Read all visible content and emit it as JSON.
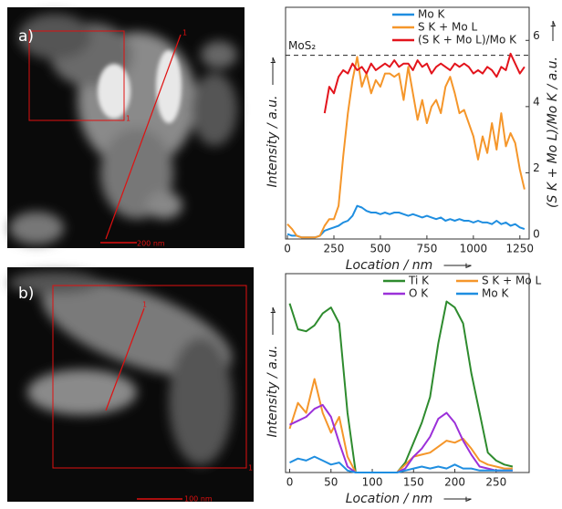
{
  "panels": [
    {
      "label": "a)",
      "markers": [
        "1",
        "1"
      ],
      "scale_bar": "200 nm"
    },
    {
      "label": "b)",
      "markers": [
        "1",
        "1"
      ],
      "scale_bar": "100 nm"
    }
  ],
  "chart_data": [
    {
      "type": "line",
      "ylabel": "Intensity / a.u.",
      "xlabel": "Location / nm",
      "y2label": "(S K + Mo L)/Mo K / a.u.",
      "x": [
        0,
        25,
        50,
        75,
        100,
        125,
        150,
        175,
        200,
        225,
        250,
        275,
        300,
        325,
        350,
        375,
        400,
        425,
        450,
        475,
        500,
        525,
        550,
        575,
        600,
        625,
        650,
        675,
        700,
        725,
        750,
        775,
        800,
        825,
        850,
        875,
        900,
        925,
        950,
        975,
        1000,
        1025,
        1050,
        1075,
        1100,
        1125,
        1150,
        1175,
        1200,
        1225,
        1250,
        1275
      ],
      "xlim": [
        -10,
        1300
      ],
      "xticks": [
        0,
        250,
        500,
        750,
        1000,
        1250
      ],
      "ylim": [
        0,
        7
      ],
      "y2lim": [
        0,
        7
      ],
      "y2ticks": [
        0,
        2,
        4,
        6
      ],
      "legend": "top-right",
      "legend_columns": 1,
      "reference": {
        "label": "MoS₂",
        "value": 5.55,
        "axis": "y2"
      },
      "series": [
        {
          "name": "Mo K",
          "color": "#1f8ee0",
          "values": [
            0.15,
            0.1,
            0.1,
            0.05,
            0.05,
            0.05,
            0.05,
            0.1,
            0.25,
            0.3,
            0.35,
            0.4,
            0.5,
            0.55,
            0.7,
            1.0,
            0.95,
            0.85,
            0.8,
            0.8,
            0.75,
            0.8,
            0.75,
            0.8,
            0.8,
            0.75,
            0.7,
            0.75,
            0.7,
            0.65,
            0.7,
            0.65,
            0.6,
            0.65,
            0.55,
            0.6,
            0.55,
            0.6,
            0.55,
            0.55,
            0.5,
            0.55,
            0.5,
            0.5,
            0.45,
            0.55,
            0.45,
            0.5,
            0.4,
            0.45,
            0.35,
            0.3
          ]
        },
        {
          "name": "S K + Mo L",
          "color": "#f5962a",
          "values": [
            0.45,
            0.3,
            0.1,
            0.05,
            0.05,
            0.05,
            0.05,
            0.1,
            0.4,
            0.6,
            0.6,
            1.0,
            2.5,
            3.8,
            4.8,
            5.5,
            4.6,
            5.0,
            4.4,
            4.8,
            4.6,
            5.0,
            5.0,
            4.9,
            5.0,
            4.2,
            5.2,
            4.4,
            3.6,
            4.2,
            3.5,
            4.0,
            4.2,
            3.8,
            4.6,
            4.9,
            4.4,
            3.8,
            3.9,
            3.5,
            3.1,
            2.4,
            3.1,
            2.6,
            3.5,
            2.7,
            3.8,
            2.8,
            3.2,
            2.9,
            2.1,
            1.5
          ]
        },
        {
          "name": "(S K + Mo L)/Mo K",
          "color": "#e3141c",
          "axis": "y2",
          "values": [
            null,
            null,
            null,
            null,
            null,
            null,
            null,
            null,
            3.8,
            4.6,
            4.4,
            4.9,
            5.1,
            5.0,
            5.3,
            5.1,
            5.2,
            5.0,
            5.3,
            5.1,
            5.2,
            5.3,
            5.2,
            5.4,
            5.2,
            5.3,
            5.3,
            5.1,
            5.4,
            5.2,
            5.3,
            5.0,
            5.2,
            5.3,
            5.2,
            5.1,
            5.3,
            5.2,
            5.3,
            5.2,
            5.0,
            5.1,
            5.0,
            5.2,
            5.1,
            4.9,
            5.2,
            5.1,
            5.6,
            5.3,
            5.0,
            5.2
          ]
        }
      ]
    },
    {
      "type": "line",
      "ylabel": "Intensity / a.u.",
      "xlabel": "Location / nm",
      "x": [
        0,
        10,
        20,
        30,
        40,
        50,
        60,
        70,
        80,
        90,
        100,
        110,
        120,
        130,
        140,
        150,
        160,
        170,
        180,
        190,
        200,
        210,
        220,
        230,
        240,
        250,
        260,
        270
      ],
      "xlim": [
        -5,
        290
      ],
      "xticks": [
        0,
        50,
        100,
        150,
        200,
        250
      ],
      "ylim": [
        0,
        10
      ],
      "legend": "top-right",
      "legend_columns": 2,
      "series": [
        {
          "name": "Ti K",
          "color": "#2e8b2e",
          "values": [
            8.5,
            7.2,
            7.1,
            7.4,
            8.0,
            8.3,
            7.5,
            3.0,
            0,
            0,
            0,
            0,
            0,
            0,
            0.5,
            1.5,
            2.5,
            3.8,
            6.5,
            8.6,
            8.3,
            7.5,
            5.0,
            3.0,
            1.0,
            0.6,
            0.4,
            0.3
          ]
        },
        {
          "name": "S K + Mo L",
          "color": "#f5962a",
          "values": [
            2.2,
            3.5,
            3.0,
            4.7,
            3.0,
            2.0,
            2.8,
            0.8,
            0,
            0,
            0,
            0,
            0,
            0,
            0.4,
            0.8,
            0.9,
            1.0,
            1.3,
            1.6,
            1.5,
            1.7,
            1.2,
            0.6,
            0.4,
            0.3,
            0.2,
            0.2
          ]
        },
        {
          "name": "O K",
          "color": "#9b30d9",
          "values": [
            2.4,
            2.6,
            2.8,
            3.2,
            3.4,
            2.8,
            1.5,
            0.3,
            0,
            0,
            0,
            0,
            0,
            0,
            0.2,
            0.8,
            1.2,
            1.8,
            2.7,
            3.0,
            2.5,
            1.6,
            0.9,
            0.3,
            0.2,
            0.1,
            0.1,
            0.1
          ]
        },
        {
          "name": "Mo K",
          "color": "#1f8ee0",
          "values": [
            0.5,
            0.7,
            0.6,
            0.8,
            0.6,
            0.4,
            0.5,
            0.1,
            0,
            0,
            0,
            0,
            0,
            0,
            0.1,
            0.2,
            0.3,
            0.2,
            0.3,
            0.2,
            0.4,
            0.2,
            0.2,
            0.1,
            0.1,
            0.1,
            0.1,
            0.1
          ]
        }
      ]
    }
  ]
}
